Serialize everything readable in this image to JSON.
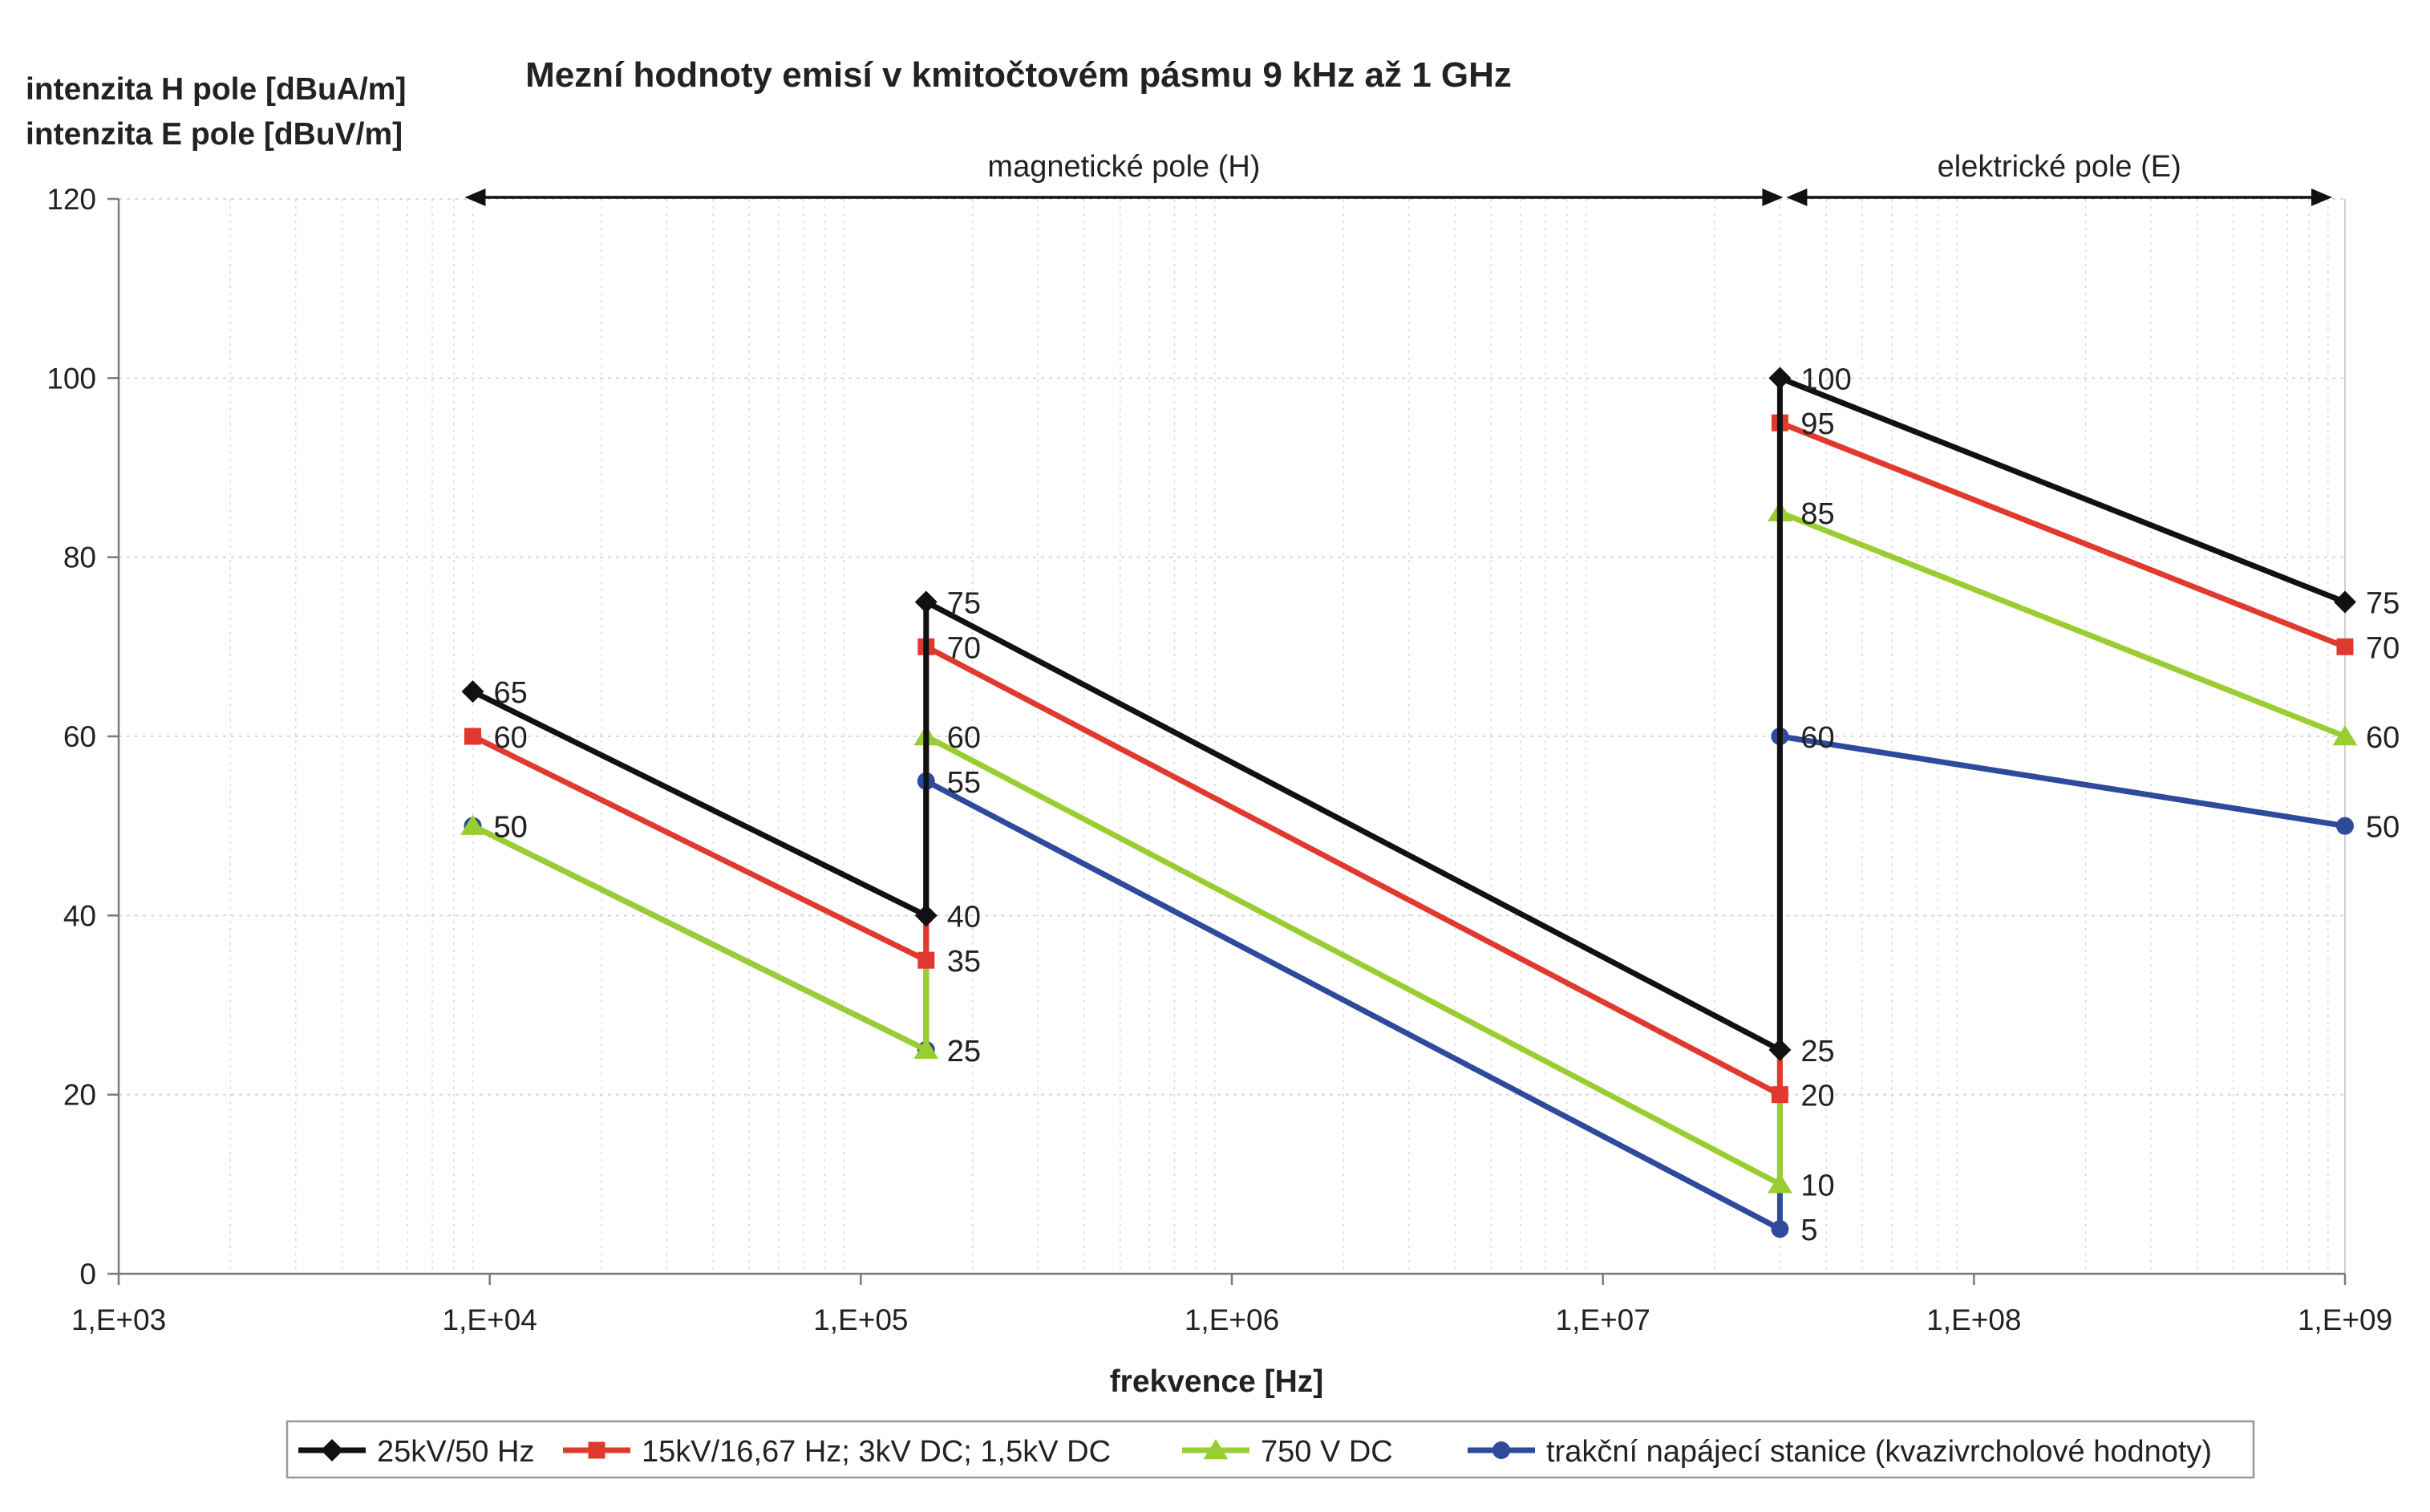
{
  "chart_data": {
    "type": "line",
    "title": "Mezní hodnoty emisí v kmitočtovém pásmu 9 kHz až 1 GHz",
    "ylabel_lines": [
      "intenzita H pole [dBuA/m]",
      "intenzita E pole [dBuV/m]"
    ],
    "xlabel": "frekvence [Hz]",
    "x_scale": "log",
    "xlim": [
      1000,
      1000000000
    ],
    "ylim": [
      0,
      120
    ],
    "y_ticks": [
      0,
      20,
      40,
      60,
      80,
      100,
      120
    ],
    "y_tick_labels": [
      "0",
      "20",
      "40",
      "60",
      "80",
      "100",
      "120"
    ],
    "x_ticks": [
      1000,
      10000,
      100000,
      1000000,
      10000000,
      100000000,
      1000000000
    ],
    "x_tick_labels": [
      "1,E+03",
      "1,E+04",
      "1,E+05",
      "1,E+06",
      "1,E+07",
      "1,E+08",
      "1,E+09"
    ],
    "grid": {
      "horizontal_major": true,
      "vertical_minor": true
    },
    "legend": "bottom",
    "regions": [
      {
        "label": "magnetické pole (H)",
        "x_from": 9000,
        "x_to": 30000000
      },
      {
        "label": "elektrické pole (E)",
        "x_from": 30000000,
        "x_to": 1000000000
      }
    ],
    "series": [
      {
        "name": "25kV/50 Hz",
        "color": "#111111",
        "marker": "diamond",
        "points": [
          [
            9000,
            65
          ],
          [
            150000,
            40
          ],
          [
            150000,
            75
          ],
          [
            30000000,
            25
          ],
          [
            30000000,
            100
          ],
          [
            1000000000,
            75
          ]
        ],
        "labels": [
          "65",
          "40",
          "75",
          "25",
          "100",
          "75"
        ]
      },
      {
        "name": "15kV/16,67 Hz; 3kV DC; 1,5kV DC",
        "color": "#e03a2f",
        "marker": "square",
        "points": [
          [
            9000,
            60
          ],
          [
            150000,
            35
          ],
          [
            150000,
            70
          ],
          [
            30000000,
            20
          ],
          [
            30000000,
            95
          ],
          [
            1000000000,
            70
          ]
        ],
        "labels": [
          "60",
          "35",
          "70",
          "20",
          "95",
          "70"
        ]
      },
      {
        "name": "750 V DC",
        "color": "#9acd32",
        "marker": "triangle",
        "points": [
          [
            9000,
            50
          ],
          [
            150000,
            25
          ],
          [
            150000,
            60
          ],
          [
            30000000,
            10
          ],
          [
            30000000,
            85
          ],
          [
            1000000000,
            60
          ]
        ],
        "labels": [
          "50",
          "25",
          "60",
          "10",
          "85",
          "60"
        ]
      },
      {
        "name": "trakční napájecí stanice (kvazivrcholové hodnoty)",
        "color": "#2e4a9a",
        "marker": "circle",
        "points": [
          [
            9000,
            50
          ],
          [
            150000,
            25
          ],
          [
            150000,
            55
          ],
          [
            30000000,
            5
          ],
          [
            30000000,
            60
          ],
          [
            1000000000,
            50
          ]
        ],
        "labels": [
          "50",
          "25",
          "55",
          "5",
          "60",
          "50"
        ]
      }
    ]
  }
}
